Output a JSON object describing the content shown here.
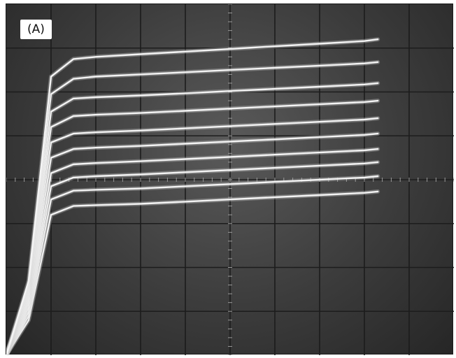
{
  "figure": {
    "panel_label": "(A)"
  },
  "colors": {
    "screen": "#3c3c3c",
    "grid": "#1c1c1c",
    "trace": "#f4f4f4"
  },
  "chart_data": {
    "type": "line",
    "title": "",
    "xlabel": "",
    "ylabel": "",
    "xlim": [
      0,
      10
    ],
    "ylim": [
      0,
      8
    ],
    "grid": true,
    "grid_divisions": {
      "x": 10,
      "y": 8
    },
    "series": [
      {
        "x": [
          0,
          0.5,
          1.0,
          1.5,
          2.0,
          3.0,
          4.0,
          5.0,
          6.0,
          7.0,
          8.0,
          8.3
        ],
        "y": [
          0.0,
          0.8,
          3.2,
          3.4,
          3.42,
          3.45,
          3.5,
          3.55,
          3.6,
          3.65,
          3.7,
          3.73
        ]
      },
      {
        "x": [
          0,
          0.5,
          1.0,
          1.5,
          2.0,
          3.0,
          4.0,
          5.0,
          6.0,
          7.0,
          8.0,
          8.3
        ],
        "y": [
          0.0,
          0.9,
          3.55,
          3.75,
          3.77,
          3.8,
          3.85,
          3.9,
          3.95,
          4.0,
          4.05,
          4.08
        ]
      },
      {
        "x": [
          0,
          0.5,
          1.0,
          1.5,
          2.0,
          3.0,
          4.0,
          5.0,
          6.0,
          7.0,
          8.0,
          8.3
        ],
        "y": [
          0.0,
          1.0,
          3.85,
          4.05,
          4.08,
          4.12,
          4.17,
          4.22,
          4.27,
          4.32,
          4.37,
          4.4
        ]
      },
      {
        "x": [
          0,
          0.5,
          1.0,
          1.5,
          2.0,
          3.0,
          4.0,
          5.0,
          6.0,
          7.0,
          8.0,
          8.3
        ],
        "y": [
          0.0,
          1.1,
          4.15,
          4.35,
          4.38,
          4.42,
          4.47,
          4.52,
          4.57,
          4.62,
          4.67,
          4.7
        ]
      },
      {
        "x": [
          0,
          0.5,
          1.0,
          1.5,
          2.0,
          3.0,
          4.0,
          5.0,
          6.0,
          7.0,
          8.0,
          8.3
        ],
        "y": [
          0.0,
          1.2,
          4.5,
          4.7,
          4.73,
          4.77,
          4.82,
          4.87,
          4.92,
          4.97,
          5.02,
          5.05
        ]
      },
      {
        "x": [
          0,
          0.5,
          1.0,
          1.5,
          2.0,
          3.0,
          4.0,
          5.0,
          6.0,
          7.0,
          8.0,
          8.3
        ],
        "y": [
          0.0,
          1.3,
          4.85,
          5.05,
          5.08,
          5.12,
          5.17,
          5.22,
          5.27,
          5.32,
          5.37,
          5.4
        ]
      },
      {
        "x": [
          0,
          0.5,
          1.0,
          1.5,
          2.0,
          3.0,
          4.0,
          5.0,
          6.0,
          7.0,
          8.0,
          8.3
        ],
        "y": [
          0.0,
          1.4,
          5.2,
          5.45,
          5.48,
          5.52,
          5.57,
          5.62,
          5.67,
          5.72,
          5.77,
          5.8
        ]
      },
      {
        "x": [
          0,
          0.5,
          1.0,
          1.5,
          2.0,
          3.0,
          4.0,
          5.0,
          6.0,
          7.0,
          8.0,
          8.3
        ],
        "y": [
          0.0,
          1.5,
          5.55,
          5.85,
          5.88,
          5.92,
          5.97,
          6.02,
          6.07,
          6.12,
          6.17,
          6.2
        ]
      },
      {
        "x": [
          0,
          0.5,
          1.0,
          1.5,
          2.0,
          3.0,
          4.0,
          5.0,
          6.0,
          7.0,
          8.0,
          8.3
        ],
        "y": [
          0.0,
          1.6,
          5.95,
          6.3,
          6.35,
          6.4,
          6.45,
          6.5,
          6.55,
          6.6,
          6.65,
          6.68
        ]
      },
      {
        "x": [
          0,
          0.5,
          1.0,
          1.5,
          2.0,
          3.0,
          4.0,
          5.0,
          6.0,
          7.0,
          8.0,
          8.3
        ],
        "y": [
          0.0,
          1.7,
          6.35,
          6.75,
          6.8,
          6.86,
          6.92,
          6.98,
          7.04,
          7.1,
          7.16,
          7.2
        ]
      }
    ]
  }
}
